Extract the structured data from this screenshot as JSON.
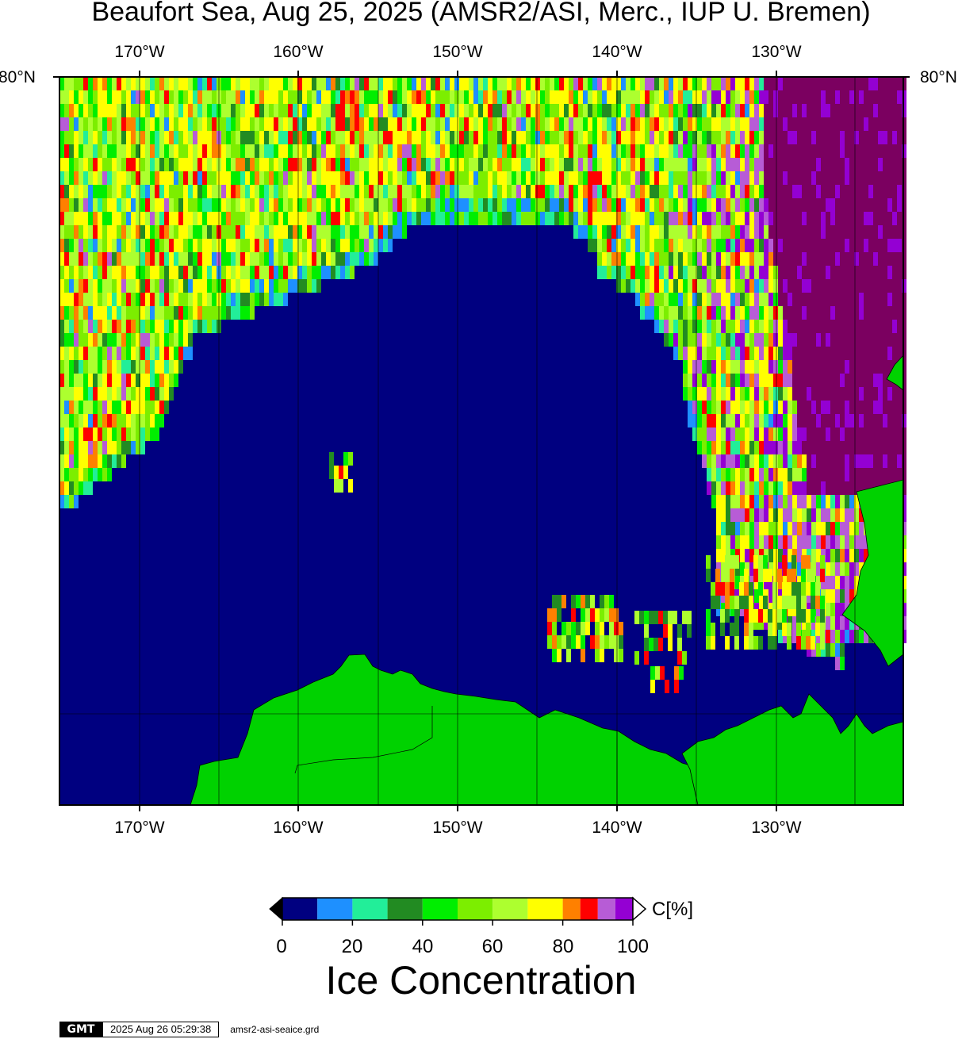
{
  "title": "Beaufort Sea, Aug 25, 2025 (AMSR2/ASI, Merc., IUP U. Bremen)",
  "map": {
    "longitude_labels": [
      "170°W",
      "160°W",
      "150°W",
      "140°W",
      "130°W"
    ],
    "latitude_label": "80°N",
    "colors": {
      "water": "#000080",
      "land": "#00d200",
      "border": "#000000"
    }
  },
  "colorbar": {
    "unit_label": "C[%]",
    "tick_labels": [
      "0",
      "20",
      "40",
      "60",
      "80",
      "100"
    ],
    "bins": [
      {
        "from": 0,
        "to": 10,
        "color": "#000080"
      },
      {
        "from": 10,
        "to": 20,
        "color": "#1e90ff"
      },
      {
        "from": 20,
        "to": 30,
        "color": "#22ee99"
      },
      {
        "from": 30,
        "to": 40,
        "color": "#228b22"
      },
      {
        "from": 40,
        "to": 50,
        "color": "#00ee00"
      },
      {
        "from": 50,
        "to": 60,
        "color": "#7cee00"
      },
      {
        "from": 60,
        "to": 70,
        "color": "#adff2f"
      },
      {
        "from": 70,
        "to": 80,
        "color": "#ffff00"
      },
      {
        "from": 80,
        "to": 85,
        "color": "#ff8000"
      },
      {
        "from": 85,
        "to": 90,
        "color": "#ff0000"
      },
      {
        "from": 90,
        "to": 95,
        "color": "#b75cd6"
      },
      {
        "from": 95,
        "to": 100,
        "color": "#9400d3"
      }
    ],
    "over_100_color": "#7b0060"
  },
  "caption": "Ice Concentration",
  "footer": {
    "logo_text": "GMT",
    "timestamp": "2025 Aug 26 05:29:38",
    "grid_file": "amsr2-asi-seaice.grd"
  }
}
